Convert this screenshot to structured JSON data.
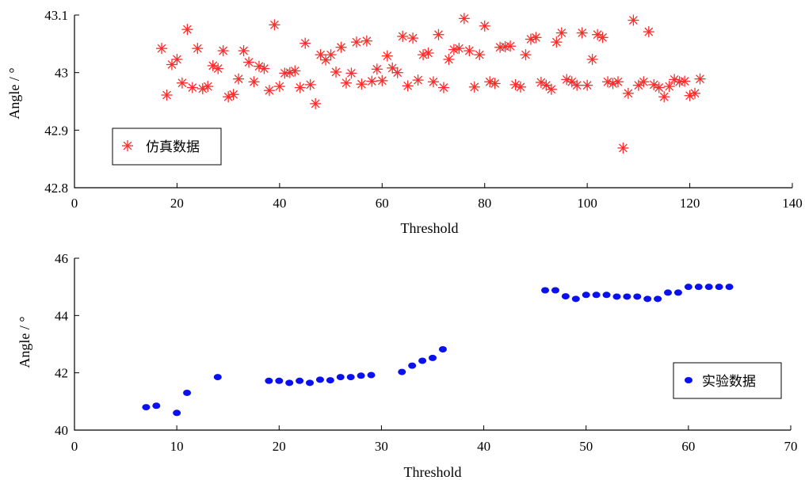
{
  "colors": {
    "sim": "#ff2a2a",
    "exp": "#0a10ee",
    "axis": "#000000"
  },
  "chart_data": [
    {
      "type": "scatter",
      "marker": "asterisk-icon",
      "xlabel": "Threshold",
      "ylabel": "Angle / °",
      "xlim": [
        0,
        140
      ],
      "ylim": [
        42.8,
        43.1
      ],
      "xticks": [
        "0",
        "20",
        "40",
        "60",
        "80",
        "100",
        "120",
        "140"
      ],
      "yticks": [
        "42.8",
        "42.9",
        "43",
        "43.1"
      ],
      "legend_position": "lower-left",
      "series": [
        {
          "name": "仿真数据",
          "x": [
            17,
            18,
            19,
            20,
            21,
            22,
            23,
            24,
            25,
            26,
            27,
            28,
            29,
            30,
            31,
            32,
            33,
            34,
            35,
            36,
            37,
            38,
            39,
            40,
            41,
            42,
            43,
            44,
            45,
            46,
            47,
            48,
            49,
            50,
            51,
            52,
            53,
            54,
            55,
            56,
            57,
            58,
            59,
            60,
            61,
            62,
            63,
            64,
            65,
            66,
            67,
            68,
            69,
            70,
            71,
            72,
            73,
            74,
            75,
            76,
            77,
            78,
            79,
            80,
            81,
            82,
            83,
            84,
            85,
            86,
            87,
            88,
            89,
            90,
            91,
            92,
            93,
            94,
            95,
            96,
            97,
            98,
            99,
            100,
            101,
            102,
            103,
            104,
            105,
            106,
            107,
            108,
            109,
            110,
            111,
            112,
            113,
            114,
            115,
            116,
            117,
            118,
            119,
            120,
            121,
            122
          ],
          "y": [
            43.042,
            42.961,
            43.014,
            43.023,
            42.982,
            43.075,
            42.974,
            43.042,
            42.972,
            42.976,
            43.012,
            43.007,
            43.038,
            42.958,
            42.962,
            42.989,
            43.038,
            43.018,
            42.984,
            43.011,
            43.007,
            42.969,
            43.083,
            42.976,
            42.999,
            43.0,
            43.003,
            42.974,
            43.051,
            42.979,
            42.946,
            43.031,
            43.022,
            43.031,
            43.001,
            43.044,
            42.982,
            42.999,
            43.053,
            42.98,
            43.055,
            42.985,
            43.006,
            42.986,
            43.029,
            43.008,
            43.0,
            43.063,
            42.977,
            43.06,
            42.987,
            43.031,
            43.034,
            42.984,
            43.066,
            42.974,
            43.023,
            43.04,
            43.042,
            43.094,
            43.038,
            42.975,
            43.031,
            43.081,
            42.984,
            42.981,
            43.044,
            43.045,
            43.046,
            42.979,
            42.975,
            43.031,
            43.058,
            43.061,
            42.983,
            42.978,
            42.971,
            43.053,
            43.069,
            42.988,
            42.984,
            42.978,
            43.069,
            42.978,
            43.023,
            43.066,
            43.061,
            42.984,
            42.981,
            42.984,
            42.869,
            42.964,
            43.091,
            42.978,
            42.984,
            43.071,
            42.979,
            42.974,
            42.958,
            42.976,
            42.988,
            42.984,
            42.985,
            42.96,
            42.964,
            42.989
          ]
        }
      ]
    },
    {
      "type": "scatter",
      "marker": "dot-icon",
      "xlabel": "Threshold",
      "ylabel": "Angle / °",
      "xlim": [
        0,
        70
      ],
      "ylim": [
        40,
        46
      ],
      "xticks": [
        "0",
        "10",
        "20",
        "30",
        "40",
        "50",
        "60",
        "70"
      ],
      "yticks": [
        "40",
        "42",
        "44",
        "46"
      ],
      "legend_position": "right",
      "series": [
        {
          "name": "实验数据",
          "x": [
            7,
            8,
            10,
            11,
            14,
            19,
            20,
            21,
            22,
            23,
            24,
            25,
            26,
            27,
            28,
            29,
            32,
            33,
            34,
            35,
            36,
            46,
            47,
            48,
            49,
            50,
            51,
            52,
            53,
            54,
            55,
            56,
            57,
            58,
            59,
            60,
            61,
            62,
            63,
            64
          ],
          "y": [
            40.8,
            40.85,
            40.6,
            41.3,
            41.85,
            41.72,
            41.72,
            41.65,
            41.72,
            41.65,
            41.76,
            41.74,
            41.85,
            41.85,
            41.9,
            41.92,
            42.03,
            42.25,
            42.42,
            42.52,
            42.82,
            44.88,
            44.88,
            44.67,
            44.58,
            44.72,
            44.72,
            44.72,
            44.66,
            44.66,
            44.66,
            44.58,
            44.58,
            44.8,
            44.8,
            45.0,
            45.0,
            45.0,
            45.0,
            45.0
          ]
        }
      ]
    }
  ]
}
